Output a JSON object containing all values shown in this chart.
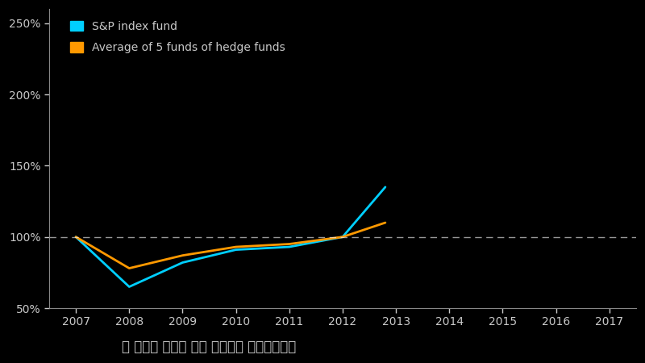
{
  "background_color": "#000000",
  "plot_bg_color": "#000000",
  "text_color": "#c8c8c8",
  "years_sp": [
    2007,
    2008,
    2009,
    2010,
    2011,
    2012,
    2012.8
  ],
  "years_hedge": [
    2007,
    2008,
    2009,
    2010,
    2011,
    2012,
    2012.8
  ],
  "sp500": [
    100,
    65,
    82,
    91,
    93,
    100,
    135
  ],
  "hedge": [
    100,
    78,
    87,
    93,
    95,
    100,
    110
  ],
  "sp500_color": "#00cfff",
  "hedge_color": "#ff9900",
  "sp500_label": "S&P index fund",
  "hedge_label": "Average of 5 funds of hedge funds",
  "annotation": "그 이후로 격차는 점점 벌어지기 시작했습니다",
  "ylim": [
    50,
    260
  ],
  "yticks": [
    50,
    100,
    150,
    200,
    250
  ],
  "ytick_labels": [
    "50%",
    "100%",
    "150%",
    "200%",
    "250%"
  ],
  "xticks": [
    2007,
    2008,
    2009,
    2010,
    2011,
    2012,
    2013,
    2014,
    2015,
    2016,
    2017
  ],
  "xlim": [
    2006.5,
    2017.5
  ],
  "ref_line": 100,
  "line_width": 2.0,
  "legend_fontsize": 10,
  "annotation_fontsize": 12,
  "tick_fontsize": 10,
  "spine_color": "#888888"
}
